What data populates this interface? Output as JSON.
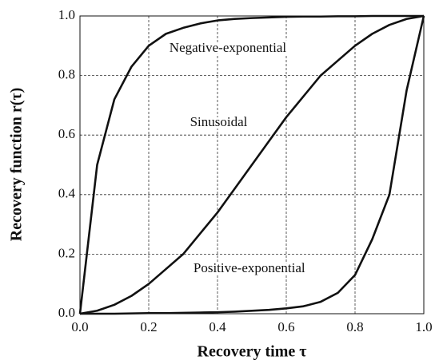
{
  "chart_data": {
    "type": "line",
    "xlabel": "Recovery time τ",
    "ylabel": "Recovery function r(τ)",
    "x": [
      0,
      0.05,
      0.1,
      0.15,
      0.2,
      0.25,
      0.3,
      0.35,
      0.4,
      0.45,
      0.5,
      0.55,
      0.6,
      0.65,
      0.7,
      0.75,
      0.8,
      0.85,
      0.9,
      0.95,
      1
    ],
    "series": [
      {
        "name": "Negative-exponential",
        "color": "#111111",
        "values": [
          0,
          0.5,
          0.72,
          0.83,
          0.9,
          0.94,
          0.96,
          0.975,
          0.985,
          0.99,
          0.993,
          0.995,
          0.997,
          0.998,
          0.998,
          0.999,
          0.999,
          1,
          1,
          1,
          1
        ]
      },
      {
        "name": "Sinusoidal",
        "color": "#111111",
        "values": [
          0,
          0.01,
          0.03,
          0.06,
          0.1,
          0.15,
          0.2,
          0.27,
          0.34,
          0.42,
          0.5,
          0.58,
          0.66,
          0.73,
          0.8,
          0.85,
          0.9,
          0.94,
          0.97,
          0.99,
          1
        ]
      },
      {
        "name": "Positive-exponential",
        "color": "#111111",
        "values": [
          0,
          0,
          0,
          0.001,
          0.002,
          0.002,
          0.003,
          0.004,
          0.005,
          0.007,
          0.01,
          0.013,
          0.018,
          0.025,
          0.04,
          0.07,
          0.13,
          0.25,
          0.4,
          0.75,
          1
        ]
      }
    ],
    "xlim": [
      0,
      1
    ],
    "ylim": [
      0,
      1
    ],
    "xticks": [
      {
        "value": 0,
        "label": "0.0"
      },
      0.2,
      0.4,
      0.6,
      0.8,
      {
        "value": 1,
        "label": "1.0"
      }
    ],
    "yticks": [
      {
        "value": 0,
        "label": "0.0"
      },
      0.2,
      0.4,
      0.6,
      0.8,
      {
        "value": 1,
        "label": "1.0"
      }
    ],
    "grid": true
  }
}
